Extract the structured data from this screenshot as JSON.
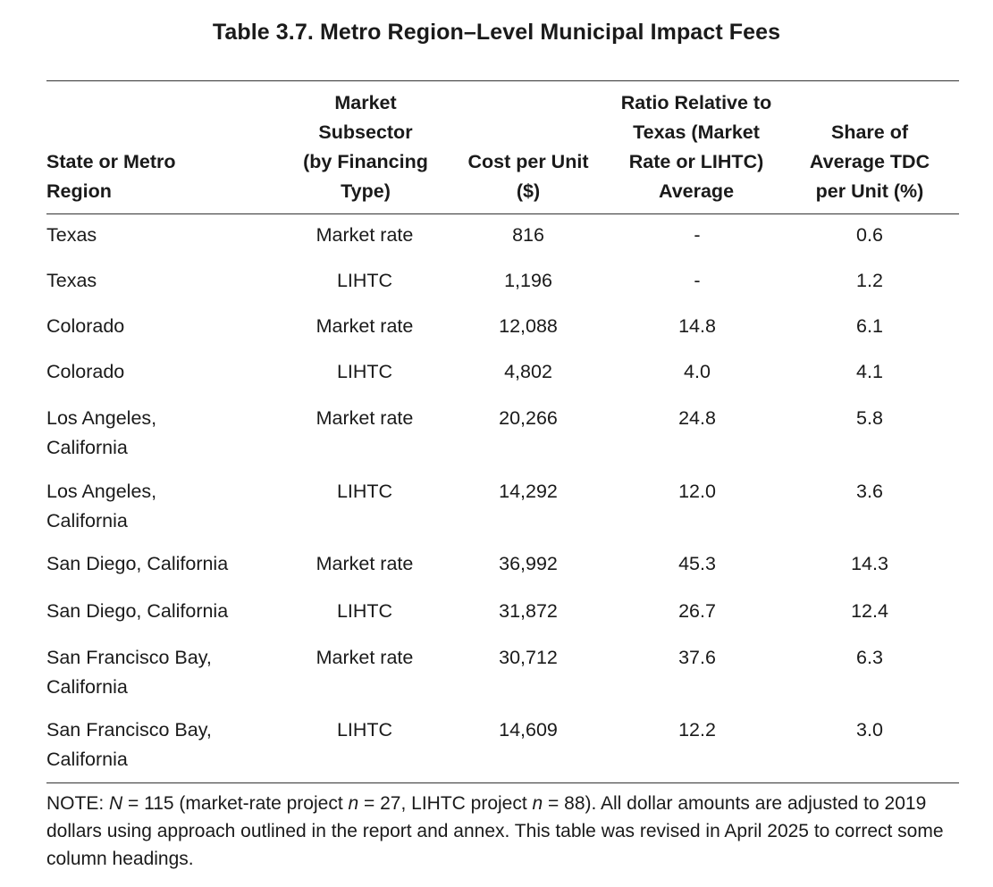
{
  "title": "Table 3.7. Metro Region–Level Municipal Impact Fees",
  "headers": {
    "col0": [
      "State or Metro",
      "Region"
    ],
    "col1": [
      "Market",
      "Subsector",
      "(by Financing",
      "Type)"
    ],
    "col2": [
      "Cost per Unit",
      "($)"
    ],
    "col3": [
      "Ratio Relative to",
      "Texas (Market",
      "Rate or LIHTC)",
      "Average"
    ],
    "col4": [
      "Share of",
      "Average TDC",
      "per Unit (%)"
    ]
  },
  "rows": [
    {
      "region": [
        "Texas"
      ],
      "subsector": "Market rate",
      "cost": "816",
      "ratio": "-",
      "share": "0.6"
    },
    {
      "region": [
        "Texas"
      ],
      "subsector": "LIHTC",
      "cost": "1,196",
      "ratio": "-",
      "share": "1.2"
    },
    {
      "region": [
        "Colorado"
      ],
      "subsector": "Market rate",
      "cost": "12,088",
      "ratio": "14.8",
      "share": "6.1"
    },
    {
      "region": [
        "Colorado"
      ],
      "subsector": "LIHTC",
      "cost": "4,802",
      "ratio": "4.0",
      "share": "4.1"
    },
    {
      "region": [
        "Los Angeles,",
        "California"
      ],
      "subsector": "Market rate",
      "cost": "20,266",
      "ratio": "24.8",
      "share": "5.8"
    },
    {
      "region": [
        "Los Angeles,",
        "California"
      ],
      "subsector": "LIHTC",
      "cost": "14,292",
      "ratio": "12.0",
      "share": "3.6"
    },
    {
      "region": [
        "San Diego, California"
      ],
      "subsector": "Market rate",
      "cost": "36,992",
      "ratio": "45.3",
      "share": "14.3"
    },
    {
      "region": [
        "San Diego, California"
      ],
      "subsector": "LIHTC",
      "cost": "31,872",
      "ratio": "26.7",
      "share": "12.4"
    },
    {
      "region": [
        "San Francisco Bay,",
        "California"
      ],
      "subsector": "Market rate",
      "cost": "30,712",
      "ratio": "37.6",
      "share": "6.3"
    },
    {
      "region": [
        "San Francisco Bay,",
        "California"
      ],
      "subsector": "LIHTC",
      "cost": "14,609",
      "ratio": "12.2",
      "share": "3.0"
    }
  ],
  "note": {
    "part1": "NOTE: ",
    "N": "N",
    "part2": " = 115 (market-rate project ",
    "n1": "n",
    "part3": " = 27, LIHTC project ",
    "n2": "n",
    "part4": " = 88). All dollar amounts are adjusted to 2019 dollars using approach outlined in the report and annex. This table was revised in April 2025 to correct some column headings."
  }
}
